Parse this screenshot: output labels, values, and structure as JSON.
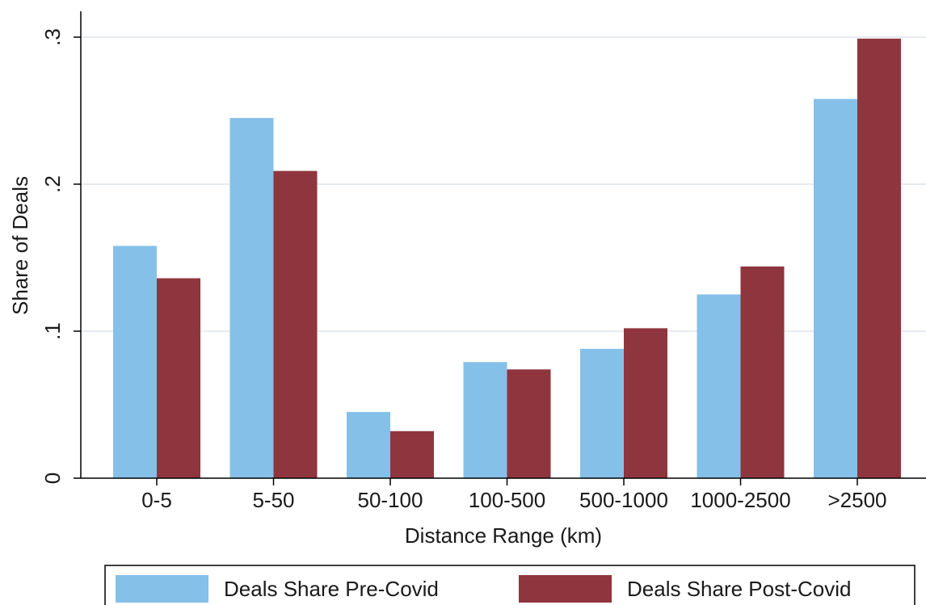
{
  "chart_data": {
    "type": "bar",
    "title": "",
    "xlabel": "Distance Range (km)",
    "ylabel": "Share of Deals",
    "categories": [
      "0-5",
      "5-50",
      "50-100",
      "100-500",
      "500-1000",
      "1000-2500",
      ">2500"
    ],
    "series": [
      {
        "name": "Deals Share Pre-Covid",
        "color": "#85c0e9",
        "values": [
          0.158,
          0.245,
          0.045,
          0.079,
          0.088,
          0.125,
          0.258
        ]
      },
      {
        "name": "Deals Share Post-Covid",
        "color": "#8f353d",
        "values": [
          0.136,
          0.209,
          0.032,
          0.074,
          0.102,
          0.144,
          0.299
        ]
      }
    ],
    "ylim": [
      0,
      0.3
    ],
    "yticks": [
      {
        "value": 0,
        "label": "0"
      },
      {
        "value": 0.1,
        "label": ".1"
      },
      {
        "value": 0.2,
        "label": ".2"
      },
      {
        "value": 0.3,
        "label": ".3"
      }
    ],
    "grid": true,
    "legend": "bottom"
  }
}
